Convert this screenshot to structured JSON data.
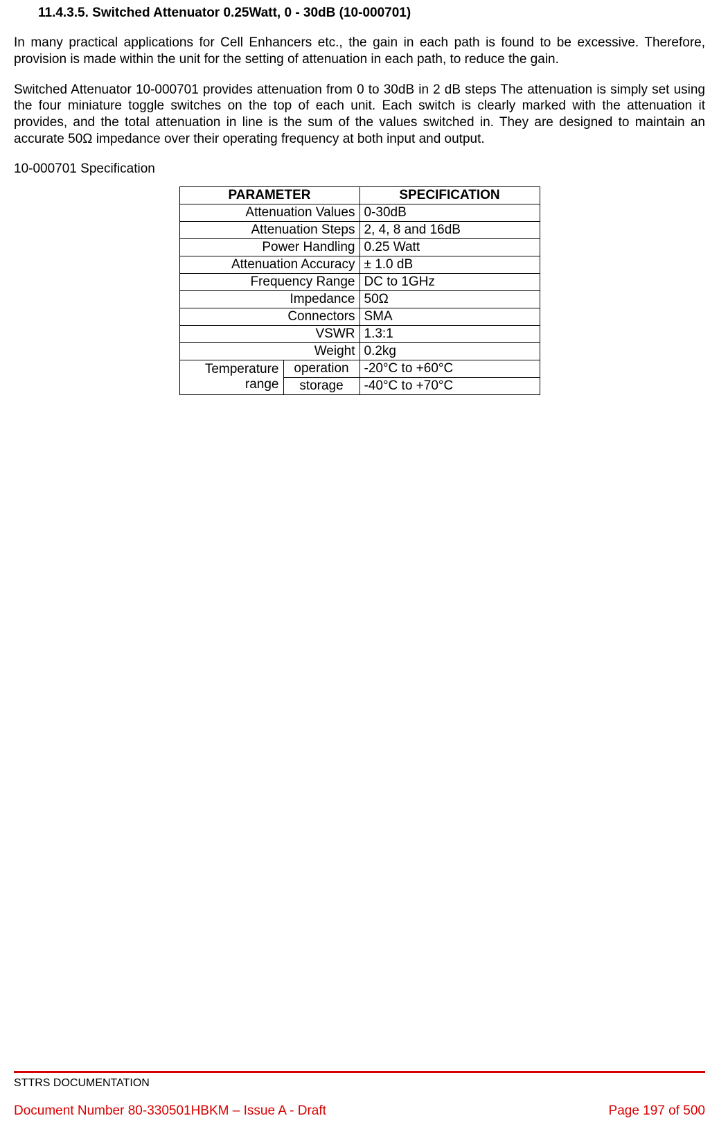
{
  "heading": "11.4.3.5.   Switched Attenuator 0.25Watt, 0 - 30dB (10-000701)",
  "para1": "In many practical applications for Cell Enhancers etc., the gain in each path is found to be excessive. Therefore, provision is made within the unit for the setting of attenuation in each path, to reduce the gain.",
  "para2": "Switched Attenuator 10-000701 provides attenuation from 0 to 30dB in 2 dB steps The attenuation is simply set using the four miniature toggle switches on the top of each unit. Each switch is clearly marked with the attenuation it provides, and the total attenuation in line is the sum of the values switched in. They are designed to maintain an accurate 50Ω impedance over their operating frequency at both input and output.",
  "spec_label": "10-000701 Specification",
  "table": {
    "header_param": "PARAMETER",
    "header_spec": "SPECIFICATION",
    "rows_simple": [
      {
        "param": "Attenuation Values",
        "spec": "0-30dB"
      },
      {
        "param": "Attenuation Steps",
        "spec": "2, 4, 8 and 16dB"
      },
      {
        "param": "Power Handling",
        "spec": "0.25 Watt"
      },
      {
        "param": "Attenuation Accuracy",
        "spec": "± 1.0 dB"
      },
      {
        "param": "Frequency Range",
        "spec": "DC to 1GHz"
      },
      {
        "param": "Impedance",
        "spec": "50Ω"
      },
      {
        "param": "Connectors",
        "spec": "SMA"
      },
      {
        "param": "VSWR",
        "spec": "1.3:1"
      },
      {
        "param": "Weight",
        "spec": "0.2kg"
      }
    ],
    "temp_label": "Temperature range",
    "temp_rows": [
      {
        "sub": "operation",
        "spec": "-20°C to +60°C"
      },
      {
        "sub": "storage",
        "spec": "-40°C to +70°C"
      }
    ]
  },
  "footer": {
    "title": "STTRS DOCUMENTATION",
    "doc": "Document Number 80-330501HBKM – Issue A - Draft",
    "page": "Page 197 of 500"
  },
  "colors": {
    "text": "#000000",
    "accent": "#d80000",
    "background": "#ffffff",
    "border": "#000000"
  }
}
